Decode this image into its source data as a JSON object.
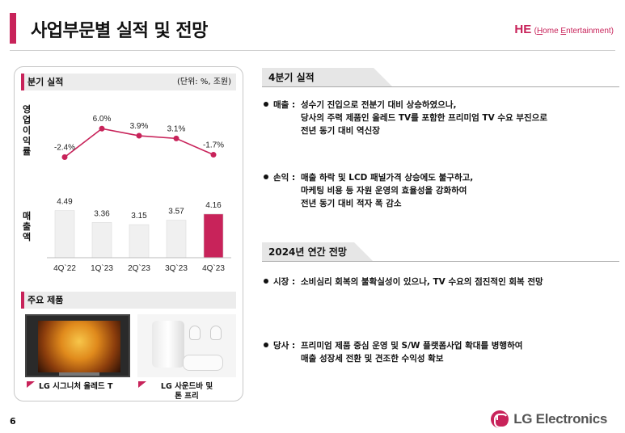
{
  "header": {
    "title": "사업부문별 실적 및 전망",
    "division_code": "HE",
    "division_name_open": "(",
    "division_name_h": "H",
    "division_name_rest1": "ome ",
    "division_name_e": "E",
    "division_name_rest2": "ntertainment)",
    "accent": "#c8235a"
  },
  "left_panel": {
    "quarterly_title": "분기 실적",
    "unit": "(단위: %, 조원)",
    "op_margin_label": [
      "영",
      "업",
      "이",
      "익",
      "률"
    ],
    "sales_label": [
      "매",
      "출",
      "액"
    ],
    "products_title": "주요 제품",
    "product1_caption": "LG 시그니처 올레드 T",
    "product2_caption_line1": "LG 사운드바 및",
    "product2_caption_line2": "톤 프리",
    "product1_icon": "oled-tv-image",
    "product2_icon": "soundbar-earbuds-image"
  },
  "chart_data": [
    {
      "type": "line",
      "categories": [
        "4Q'22",
        "1Q'23",
        "2Q'23",
        "3Q'23",
        "4Q'23"
      ],
      "values": [
        -2.4,
        6.0,
        3.9,
        3.1,
        -1.7
      ],
      "labels": [
        "-2.4%",
        "6.0%",
        "3.9%",
        "3.1%",
        "-1.7%"
      ],
      "color": "#c8235a"
    },
    {
      "type": "bar",
      "categories": [
        "4Q'22",
        "1Q'23",
        "2Q'23",
        "3Q'23",
        "4Q'23"
      ],
      "tick_labels": [
        "4Q`22",
        "1Q`23",
        "2Q`23",
        "3Q`23",
        "4Q`23"
      ],
      "values": [
        4.49,
        3.36,
        3.15,
        3.57,
        4.16
      ],
      "labels": [
        "4.49",
        "3.36",
        "3.15",
        "3.57",
        "4.16"
      ],
      "colors": [
        "#f0f0f0",
        "#f0f0f0",
        "#f0f0f0",
        "#f0f0f0",
        "#c8235a"
      ]
    }
  ],
  "q4": {
    "title": "4분기 실적",
    "sales_key": "매출 :",
    "sales_lines": [
      "성수기 진입으로 전분기 대비 상승하였으나,",
      "당사의 주력 제품인 올레드 TV를 포함한 프리미엄 TV 수요 부진으로",
      "전년 동기 대비 역신장"
    ],
    "profit_key": "손익 :",
    "profit_lines": [
      "매출 하락 및 LCD 패널가격 상승에도 불구하고,",
      "마케팅 비용 등 자원 운영의 효율성을 강화하여",
      "전년 동기 대비 적자 폭 감소"
    ]
  },
  "outlook": {
    "title": "2024년 연간 전망",
    "market_key": "시장 :",
    "market_lines": [
      "소비심리 회복의 불확실성이 있으나, TV 수요의 점진적인 회복 전망"
    ],
    "company_key": "당사 :",
    "company_lines": [
      "프리미엄 제품 중심 운영 및 S/W 플랫폼사업 확대를 병행하여",
      "매출 성장세 전환 및 견조한 수익성 확보"
    ]
  },
  "footer": {
    "page_number": "6",
    "logo_text": "LG Electronics",
    "logo_icon": "lg-logo-icon"
  }
}
